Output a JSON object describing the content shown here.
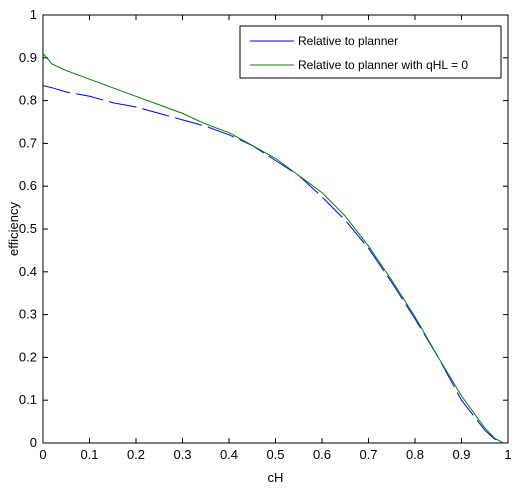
{
  "chart_data": {
    "type": "line",
    "title": "",
    "xlabel": "cH",
    "ylabel": "efficiency",
    "xlim": [
      0,
      1
    ],
    "ylim": [
      0,
      1
    ],
    "x_ticks": [
      "0",
      "0.1",
      "0.2",
      "0.3",
      "0.4",
      "0.5",
      "0.6",
      "0.7",
      "0.8",
      "0.9",
      "1"
    ],
    "y_ticks": [
      "0",
      "0.1",
      "0.2",
      "0.3",
      "0.4",
      "0.5",
      "0.6",
      "0.7",
      "0.8",
      "0.9",
      "1"
    ],
    "grid": false,
    "legend_position": "top-right",
    "series": [
      {
        "name": "Relative to planner",
        "color": "#0000ff",
        "line_style": "dashed",
        "x": [
          0.0,
          0.02,
          0.05,
          0.1,
          0.15,
          0.2,
          0.25,
          0.3,
          0.35,
          0.4,
          0.45,
          0.5,
          0.55,
          0.6,
          0.65,
          0.7,
          0.75,
          0.8,
          0.85,
          0.9,
          0.95,
          0.97,
          0.99
        ],
        "y": [
          0.835,
          0.83,
          0.82,
          0.81,
          0.795,
          0.785,
          0.77,
          0.755,
          0.74,
          0.72,
          0.695,
          0.66,
          0.625,
          0.575,
          0.52,
          0.455,
          0.375,
          0.29,
          0.2,
          0.1,
          0.03,
          0.01,
          0.0
        ]
      },
      {
        "name": "Relative to planner with qHL = 0",
        "color": "#008000",
        "line_style": "solid",
        "x": [
          0.0,
          0.02,
          0.05,
          0.1,
          0.15,
          0.2,
          0.25,
          0.3,
          0.35,
          0.4,
          0.45,
          0.5,
          0.55,
          0.6,
          0.65,
          0.7,
          0.75,
          0.8,
          0.85,
          0.9,
          0.95,
          0.97,
          0.99
        ],
        "y": [
          0.91,
          0.885,
          0.87,
          0.85,
          0.83,
          0.81,
          0.79,
          0.77,
          0.745,
          0.725,
          0.695,
          0.665,
          0.625,
          0.585,
          0.53,
          0.46,
          0.38,
          0.295,
          0.2,
          0.11,
          0.035,
          0.012,
          0.0
        ]
      }
    ]
  }
}
